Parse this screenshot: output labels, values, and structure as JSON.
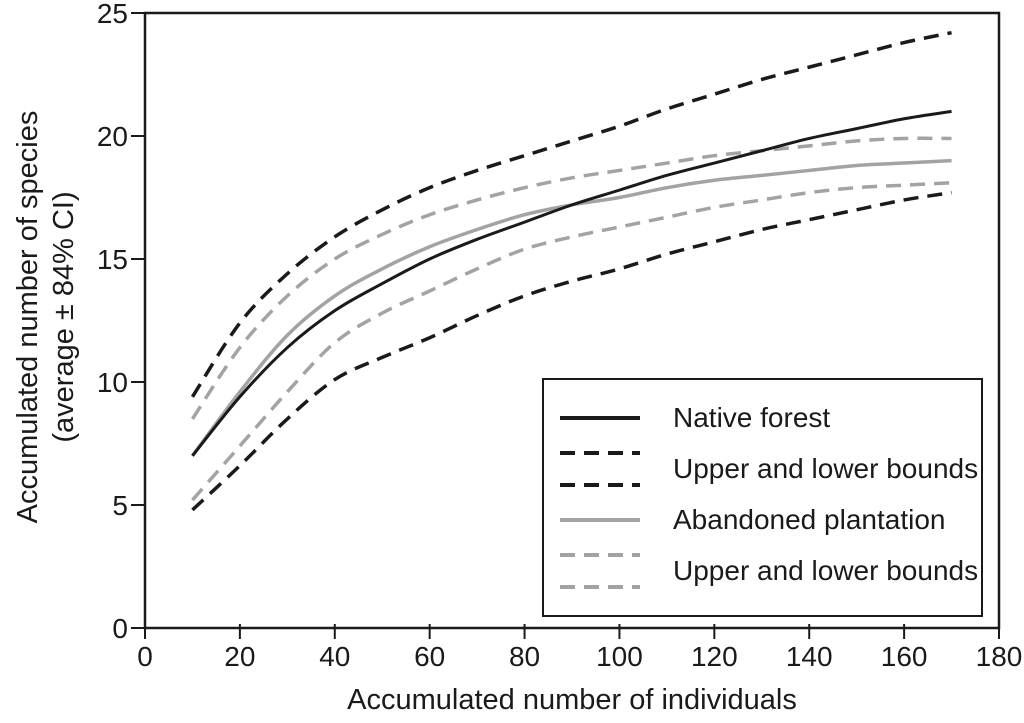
{
  "chart_data": {
    "type": "line",
    "title": "",
    "xlabel": "Accumulated number of individuals",
    "ylabel": "Accumulated number of species (average ± 84% CI)",
    "ylabel_line1": "Accumulated number of species",
    "ylabel_line2": "(average ± 84% CI)",
    "xlim": [
      0,
      180
    ],
    "ylim": [
      0,
      25
    ],
    "x_ticks": [
      0,
      20,
      40,
      60,
      80,
      100,
      120,
      140,
      160,
      180
    ],
    "y_ticks": [
      0,
      5,
      10,
      15,
      20,
      25
    ],
    "grid": false,
    "legend_position": "lower right",
    "x": [
      10,
      20,
      30,
      40,
      50,
      60,
      70,
      80,
      90,
      100,
      110,
      120,
      130,
      140,
      150,
      160,
      170
    ],
    "series": [
      {
        "name": "Native forest upper bound",
        "color": "#1a1a1a",
        "dashed": true,
        "width": 3.5,
        "values": [
          9.4,
          12.4,
          14.4,
          15.9,
          17.0,
          17.9,
          18.6,
          19.2,
          19.8,
          20.4,
          21.1,
          21.7,
          22.3,
          22.8,
          23.3,
          23.8,
          24.2
        ]
      },
      {
        "name": "Native forest lower bound",
        "color": "#1a1a1a",
        "dashed": true,
        "width": 3.5,
        "values": [
          4.8,
          6.6,
          8.5,
          10.1,
          11.0,
          11.8,
          12.7,
          13.5,
          14.1,
          14.6,
          15.2,
          15.7,
          16.2,
          16.6,
          17.0,
          17.4,
          17.7
        ]
      },
      {
        "name": "Abandoned plantation upper bound",
        "color": "#a3a3a3",
        "dashed": true,
        "width": 3.5,
        "values": [
          8.5,
          11.4,
          13.5,
          15.0,
          16.0,
          16.8,
          17.4,
          17.9,
          18.3,
          18.6,
          18.9,
          19.2,
          19.4,
          19.6,
          19.8,
          19.9,
          19.9
        ]
      },
      {
        "name": "Abandoned plantation lower bound",
        "color": "#a3a3a3",
        "dashed": true,
        "width": 3.5,
        "values": [
          5.2,
          7.4,
          9.6,
          11.6,
          12.8,
          13.7,
          14.6,
          15.4,
          15.9,
          16.3,
          16.7,
          17.1,
          17.4,
          17.7,
          17.9,
          18.0,
          18.1
        ]
      },
      {
        "name": "Abandoned plantation",
        "color": "#a3a3a3",
        "dashed": false,
        "width": 3.5,
        "values": [
          7.0,
          9.6,
          11.9,
          13.5,
          14.6,
          15.5,
          16.2,
          16.8,
          17.2,
          17.5,
          17.9,
          18.2,
          18.4,
          18.6,
          18.8,
          18.9,
          19.0
        ]
      },
      {
        "name": "Native forest",
        "color": "#1a1a1a",
        "dashed": false,
        "width": 3,
        "values": [
          7.0,
          9.4,
          11.4,
          12.9,
          14.0,
          15.0,
          15.8,
          16.5,
          17.2,
          17.8,
          18.4,
          18.9,
          19.4,
          19.9,
          20.3,
          20.7,
          21.0
        ]
      }
    ]
  },
  "legend": {
    "entries": [
      {
        "label": "Native forest",
        "style": "solid",
        "color": "#1a1a1a"
      },
      {
        "label": "Upper and lower bounds",
        "style": "double-dashed",
        "color": "#1a1a1a"
      },
      {
        "label": "Abandoned plantation",
        "style": "solid",
        "color": "#a3a3a3"
      },
      {
        "label": "Upper and lower bounds",
        "style": "double-dashed",
        "color": "#a3a3a3"
      }
    ]
  },
  "colors": {
    "line_black": "#1a1a1a",
    "line_gray": "#a3a3a3",
    "background": "#ffffff"
  }
}
